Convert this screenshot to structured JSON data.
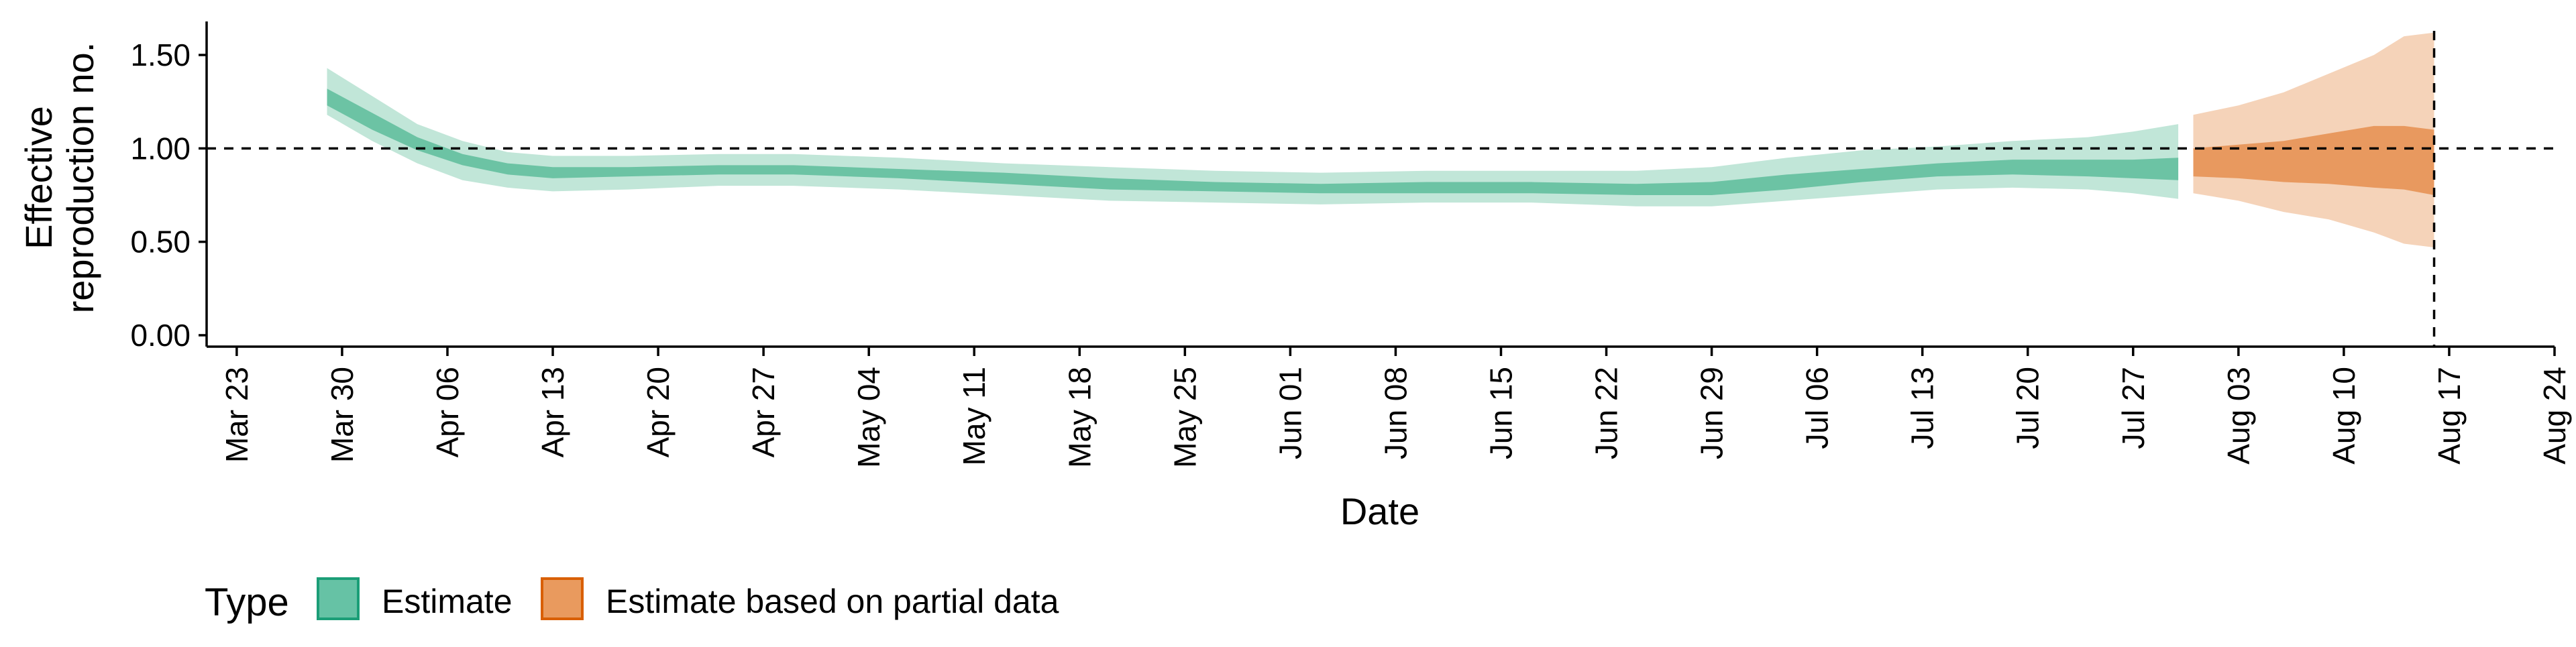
{
  "chart_data": {
    "type": "area",
    "xlabel": "Date",
    "ylabel_lines": [
      "Effective",
      "reproduction no."
    ],
    "ylim": [
      0,
      1.6
    ],
    "xlim": [
      "2020-03-21",
      "2020-08-24"
    ],
    "y_ticks": [
      {
        "value": 0.0,
        "label": "0.00"
      },
      {
        "value": 0.5,
        "label": "0.50"
      },
      {
        "value": 1.0,
        "label": "1.00"
      },
      {
        "value": 1.5,
        "label": "1.50"
      }
    ],
    "x_ticks": [
      {
        "date": "2020-03-23",
        "label": "Mar 23"
      },
      {
        "date": "2020-03-30",
        "label": "Mar 30"
      },
      {
        "date": "2020-04-06",
        "label": "Apr 06"
      },
      {
        "date": "2020-04-13",
        "label": "Apr 13"
      },
      {
        "date": "2020-04-20",
        "label": "Apr 20"
      },
      {
        "date": "2020-04-27",
        "label": "Apr 27"
      },
      {
        "date": "2020-05-04",
        "label": "May 04"
      },
      {
        "date": "2020-05-11",
        "label": "May 11"
      },
      {
        "date": "2020-05-18",
        "label": "May 18"
      },
      {
        "date": "2020-05-25",
        "label": "May 25"
      },
      {
        "date": "2020-06-01",
        "label": "Jun 01"
      },
      {
        "date": "2020-06-08",
        "label": "Jun 08"
      },
      {
        "date": "2020-06-15",
        "label": "Jun 15"
      },
      {
        "date": "2020-06-22",
        "label": "Jun 22"
      },
      {
        "date": "2020-06-29",
        "label": "Jun 29"
      },
      {
        "date": "2020-07-06",
        "label": "Jul 06"
      },
      {
        "date": "2020-07-13",
        "label": "Jul 13"
      },
      {
        "date": "2020-07-20",
        "label": "Jul 20"
      },
      {
        "date": "2020-07-27",
        "label": "Jul 27"
      },
      {
        "date": "2020-08-03",
        "label": "Aug 03"
      },
      {
        "date": "2020-08-10",
        "label": "Aug 10"
      },
      {
        "date": "2020-08-17",
        "label": "Aug 17"
      },
      {
        "date": "2020-08-24",
        "label": "Aug 24"
      }
    ],
    "reference_line_y": 1.0,
    "reference_line_date": "2020-08-16",
    "legend": {
      "title": "Type",
      "position": "bottom-left",
      "items": [
        {
          "label": "Estimate",
          "color": "#66c2a5",
          "border": "#1b9e77"
        },
        {
          "label": "Estimate based on partial data",
          "color": "#e99a5e",
          "border": "#d95f02"
        }
      ]
    },
    "series": [
      {
        "legend_item": "Estimate",
        "color_inner": "#6cc3a4",
        "color_outer": "#c1e6d8",
        "points": [
          {
            "date": "2020-03-29",
            "lo90": 1.18,
            "lo50": 1.23,
            "hi50": 1.32,
            "hi90": 1.43
          },
          {
            "date": "2020-04-01",
            "lo90": 1.04,
            "lo50": 1.1,
            "hi50": 1.19,
            "hi90": 1.28
          },
          {
            "date": "2020-04-04",
            "lo90": 0.92,
            "lo50": 0.99,
            "hi50": 1.06,
            "hi90": 1.13
          },
          {
            "date": "2020-04-07",
            "lo90": 0.83,
            "lo50": 0.91,
            "hi50": 0.97,
            "hi90": 1.04
          },
          {
            "date": "2020-04-10",
            "lo90": 0.79,
            "lo50": 0.86,
            "hi50": 0.92,
            "hi90": 0.98
          },
          {
            "date": "2020-04-13",
            "lo90": 0.77,
            "lo50": 0.84,
            "hi50": 0.9,
            "hi90": 0.96
          },
          {
            "date": "2020-04-18",
            "lo90": 0.78,
            "lo50": 0.85,
            "hi50": 0.9,
            "hi90": 0.96
          },
          {
            "date": "2020-04-24",
            "lo90": 0.8,
            "lo50": 0.86,
            "hi50": 0.91,
            "hi90": 0.97
          },
          {
            "date": "2020-04-29",
            "lo90": 0.8,
            "lo50": 0.86,
            "hi50": 0.91,
            "hi90": 0.97
          },
          {
            "date": "2020-05-06",
            "lo90": 0.78,
            "lo50": 0.84,
            "hi50": 0.89,
            "hi90": 0.95
          },
          {
            "date": "2020-05-13",
            "lo90": 0.75,
            "lo50": 0.81,
            "hi50": 0.87,
            "hi90": 0.92
          },
          {
            "date": "2020-05-20",
            "lo90": 0.72,
            "lo50": 0.78,
            "hi50": 0.84,
            "hi90": 0.9
          },
          {
            "date": "2020-05-27",
            "lo90": 0.71,
            "lo50": 0.77,
            "hi50": 0.82,
            "hi90": 0.88
          },
          {
            "date": "2020-06-03",
            "lo90": 0.7,
            "lo50": 0.76,
            "hi50": 0.81,
            "hi90": 0.87
          },
          {
            "date": "2020-06-10",
            "lo90": 0.71,
            "lo50": 0.76,
            "hi50": 0.82,
            "hi90": 0.88
          },
          {
            "date": "2020-06-17",
            "lo90": 0.71,
            "lo50": 0.76,
            "hi50": 0.82,
            "hi90": 0.88
          },
          {
            "date": "2020-06-24",
            "lo90": 0.69,
            "lo50": 0.75,
            "hi50": 0.81,
            "hi90": 0.88
          },
          {
            "date": "2020-06-29",
            "lo90": 0.69,
            "lo50": 0.75,
            "hi50": 0.82,
            "hi90": 0.9
          },
          {
            "date": "2020-07-04",
            "lo90": 0.72,
            "lo50": 0.78,
            "hi50": 0.86,
            "hi90": 0.95
          },
          {
            "date": "2020-07-09",
            "lo90": 0.75,
            "lo50": 0.82,
            "hi50": 0.89,
            "hi90": 0.99
          },
          {
            "date": "2020-07-14",
            "lo90": 0.78,
            "lo50": 0.85,
            "hi50": 0.92,
            "hi90": 1.01
          },
          {
            "date": "2020-07-19",
            "lo90": 0.79,
            "lo50": 0.86,
            "hi50": 0.94,
            "hi90": 1.04
          },
          {
            "date": "2020-07-24",
            "lo90": 0.78,
            "lo50": 0.85,
            "hi50": 0.94,
            "hi90": 1.06
          },
          {
            "date": "2020-07-27",
            "lo90": 0.76,
            "lo50": 0.84,
            "hi50": 0.94,
            "hi90": 1.09
          },
          {
            "date": "2020-07-30",
            "lo90": 0.73,
            "lo50": 0.83,
            "hi50": 0.95,
            "hi90": 1.13
          }
        ]
      },
      {
        "legend_item": "Estimate based on partial data",
        "color_inner": "#e8995f",
        "color_outer": "#f5d3b9",
        "points": [
          {
            "date": "2020-07-31",
            "lo90": 0.76,
            "lo50": 0.85,
            "hi50": 1.0,
            "hi90": 1.18
          },
          {
            "date": "2020-08-03",
            "lo90": 0.72,
            "lo50": 0.84,
            "hi50": 1.02,
            "hi90": 1.23
          },
          {
            "date": "2020-08-06",
            "lo90": 0.66,
            "lo50": 0.82,
            "hi50": 1.04,
            "hi90": 1.3
          },
          {
            "date": "2020-08-09",
            "lo90": 0.62,
            "lo50": 0.81,
            "hi50": 1.08,
            "hi90": 1.4
          },
          {
            "date": "2020-08-12",
            "lo90": 0.55,
            "lo50": 0.79,
            "hi50": 1.12,
            "hi90": 1.5
          },
          {
            "date": "2020-08-14",
            "lo90": 0.49,
            "lo50": 0.78,
            "hi50": 1.12,
            "hi90": 1.6
          },
          {
            "date": "2020-08-16",
            "lo90": 0.47,
            "lo50": 0.75,
            "hi50": 1.1,
            "hi90": 1.62
          }
        ]
      }
    ]
  }
}
